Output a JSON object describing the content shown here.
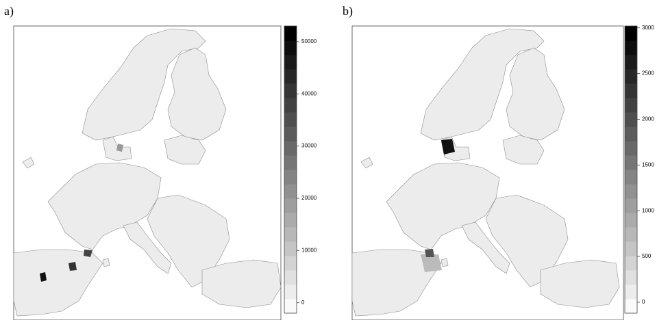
{
  "panels": [
    {
      "label": "a)",
      "colorbar": {
        "lim": [
          -2000,
          53000
        ],
        "ticks": [
          0,
          10000,
          20000,
          30000,
          40000,
          50000
        ]
      }
    },
    {
      "label": "b)",
      "colorbar": {
        "lim": [
          -120,
          3020
        ],
        "ticks": [
          0,
          500,
          1000,
          1500,
          2000,
          2500,
          3000
        ]
      }
    }
  ]
}
